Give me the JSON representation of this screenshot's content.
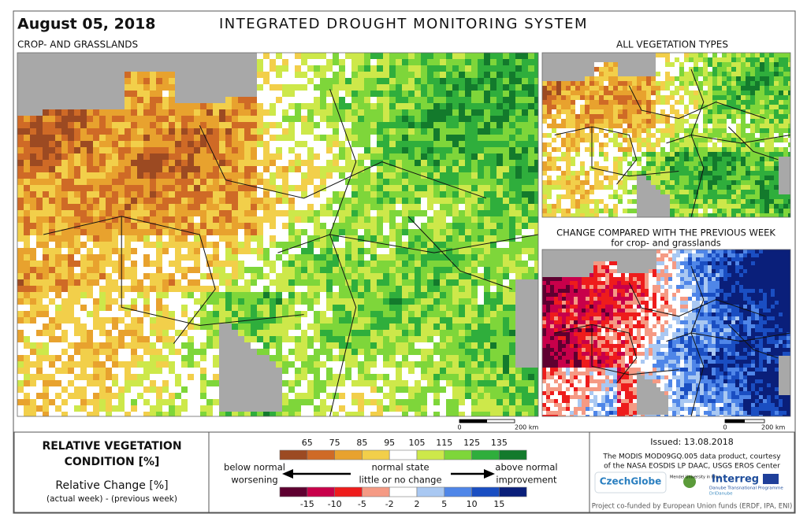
{
  "header": {
    "date": "August 05, 2018",
    "title": "INTEGRATED DROUGHT MONITORING SYSTEM"
  },
  "main_map": {
    "label": "CROP- AND GRASSLANDS",
    "scale": {
      "start": "0",
      "end": "200 km"
    }
  },
  "top_right_map": {
    "label": "ALL VEGETATION TYPES"
  },
  "bottom_right_map": {
    "label": "CHANGE COMPARED WITH THE PREVIOUS WEEK",
    "sublabel": "for crop- and grasslands",
    "scale": {
      "start": "0",
      "end": "200 km"
    }
  },
  "legend": {
    "condition_title_1": "RELATIVE VEGETATION",
    "condition_title_2": "CONDITION [%]",
    "change_title": "Relative Change [%]",
    "change_subtitle": "(actual week) - (previous week)",
    "condition_ticks": [
      65,
      75,
      85,
      95,
      105,
      115,
      125,
      135
    ],
    "condition_colors": [
      "#9c4a22",
      "#cf6a26",
      "#e8a22e",
      "#f2cf4a",
      "#ffffff",
      "#cde84a",
      "#7ed63a",
      "#2fae3c",
      "#137a2c"
    ],
    "change_ticks": [
      -15,
      -10,
      -5,
      -2,
      2,
      5,
      10,
      15
    ],
    "change_colors": [
      "#5e0030",
      "#c8004a",
      "#ee1c1c",
      "#f59a84",
      "#ffffff",
      "#a9c8f2",
      "#4f86e8",
      "#1a4ec2",
      "#0a1f7a"
    ],
    "below_normal": "below normal",
    "normal_state": "normal state",
    "above_normal": "above normal",
    "worsening": "worsening",
    "no_change": "little or no change",
    "improvement": "improvement"
  },
  "footer": {
    "issued": "Issued: 13.08.2018",
    "credit_1": "The MODIS MOD09GQ.005 data product, courtesy",
    "credit_2": "of the NASA EOSDIS LP DAAC, USGS EROS Center",
    "logo_1": "CzechGlobe",
    "logo_2": "Mendel University in Brno",
    "logo_3": "Interreg",
    "logo_4": "Danube Transnational Programme",
    "logo_5": "DriDanube",
    "funding": "Project co-funded by European Union funds (ERDF, IPA, ENI)"
  }
}
